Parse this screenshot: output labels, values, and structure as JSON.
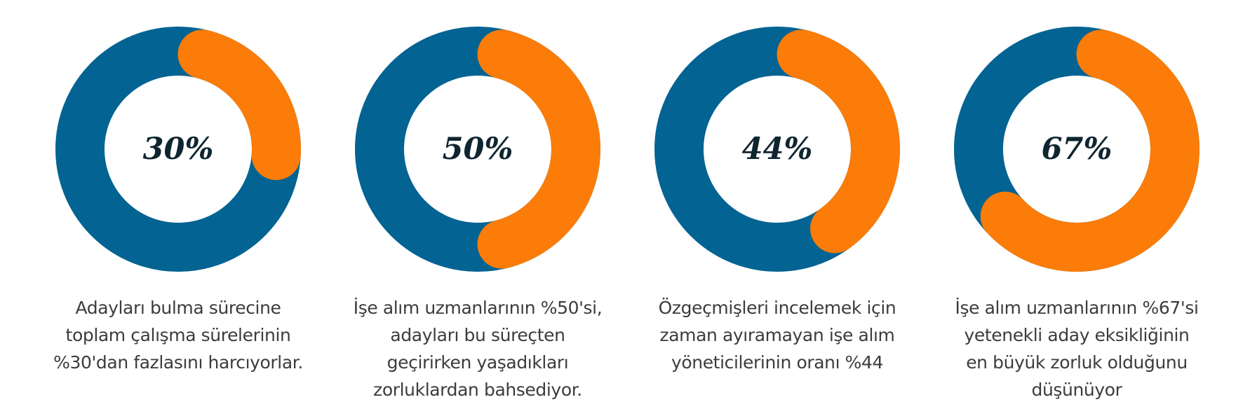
{
  "colors": {
    "track": "#036392",
    "progress": "#fb7c08",
    "center": "#ffffff",
    "value_text": "#0f2530",
    "caption_text": "#3c3c3c"
  },
  "chart_data": [
    {
      "type": "pie",
      "value": 30,
      "value_label": "30%",
      "caption_lines": [
        "Adayları bulma sürecine",
        "toplam çalışma sürelerinin",
        "%30'dan fazlasını harcıyorlar."
      ]
    },
    {
      "type": "pie",
      "value": 50,
      "value_label": "50%",
      "caption_lines": [
        "İşe alım uzmanlarının %50'si,",
        "adayları bu süreçten",
        "geçirirken yaşadıkları",
        "zorluklardan bahsediyor."
      ]
    },
    {
      "type": "pie",
      "value": 44,
      "value_label": "44%",
      "caption_lines": [
        "Özgeçmişleri incelemek için",
        "zaman ayıramayan işe alım",
        "yöneticilerinin oranı %44"
      ]
    },
    {
      "type": "pie",
      "value": 67,
      "value_label": "67%",
      "caption_lines": [
        "İşe alım uzmanlarının %67'si",
        "yetenekli aday eksikliğinin",
        "en büyük zorluk olduğunu",
        "düşünüyor"
      ]
    }
  ]
}
